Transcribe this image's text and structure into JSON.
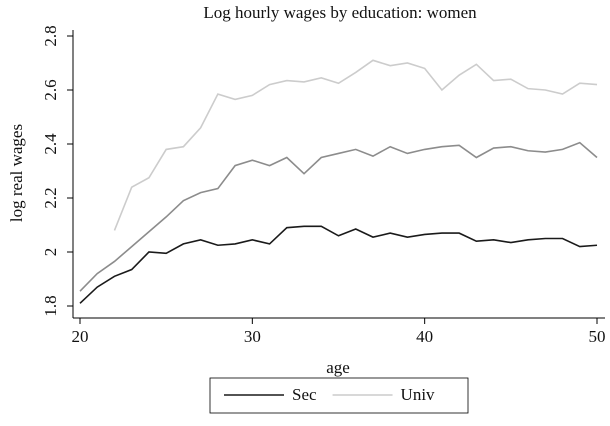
{
  "chart_data": {
    "type": "line",
    "title": "Log hourly wages by education: women",
    "x_label": "age",
    "y_label": "log real wages",
    "x": [
      20,
      21,
      22,
      23,
      24,
      25,
      26,
      27,
      28,
      29,
      30,
      31,
      32,
      33,
      34,
      35,
      36,
      37,
      38,
      39,
      40,
      41,
      42,
      43,
      44,
      45,
      46,
      47,
      48,
      49,
      50
    ],
    "xlim": [
      20,
      50
    ],
    "xticks": [
      20,
      30,
      40,
      50
    ],
    "ylim": [
      1.8,
      2.8
    ],
    "yticks": [
      1.8,
      2,
      2.2,
      2.4,
      2.6,
      2.8
    ],
    "legend": "bottom",
    "series": [
      {
        "name": "Sec",
        "color": "#1a1a1a",
        "values": [
          1.81,
          1.87,
          1.91,
          1.935,
          2.0,
          1.995,
          2.03,
          2.045,
          2.025,
          2.03,
          2.045,
          2.03,
          2.09,
          2.095,
          2.095,
          2.06,
          2.085,
          2.055,
          2.07,
          2.055,
          2.065,
          2.07,
          2.07,
          2.04,
          2.045,
          2.035,
          2.045,
          2.05,
          2.05,
          2.02,
          2.025
        ]
      },
      {
        "color": "#8c8c8c",
        "values": [
          1.855,
          1.92,
          1.965,
          2.02,
          2.075,
          2.13,
          2.19,
          2.22,
          2.235,
          2.32,
          2.34,
          2.32,
          2.35,
          2.29,
          2.35,
          2.365,
          2.38,
          2.355,
          2.39,
          2.365,
          2.38,
          2.39,
          2.395,
          2.35,
          2.385,
          2.39,
          2.375,
          2.37,
          2.38,
          2.405,
          2.35
        ]
      },
      {
        "name": "Univ",
        "color": "#cccccc",
        "values": [
          null,
          null,
          2.08,
          2.24,
          2.275,
          2.38,
          2.39,
          2.46,
          2.585,
          2.565,
          2.58,
          2.62,
          2.635,
          2.63,
          2.645,
          2.625,
          2.665,
          2.71,
          2.69,
          2.7,
          2.68,
          2.6,
          2.655,
          2.695,
          2.635,
          2.64,
          2.605,
          2.6,
          2.585,
          2.625,
          2.62
        ]
      }
    ]
  }
}
